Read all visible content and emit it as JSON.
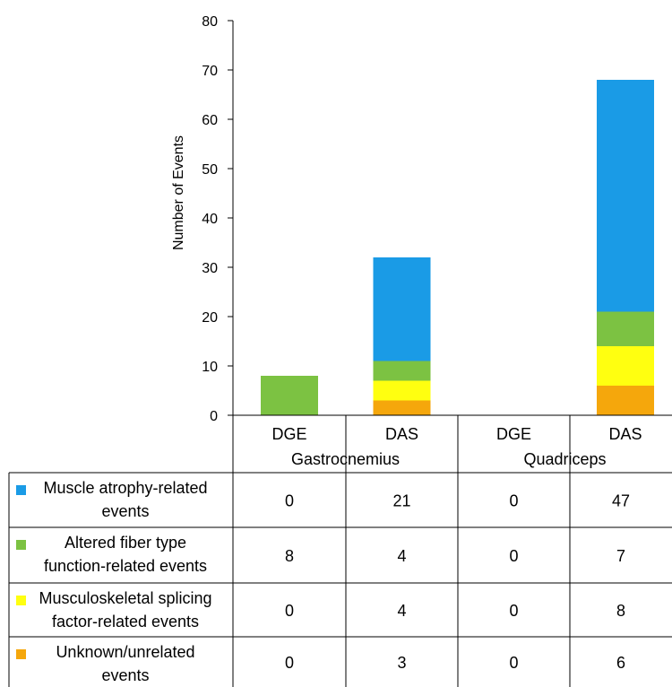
{
  "chart_data": {
    "type": "bar",
    "stacked": true,
    "ylabel": "Number of Events",
    "ylim": [
      0,
      80
    ],
    "yticks": [
      0,
      10,
      20,
      30,
      40,
      50,
      60,
      70,
      80
    ],
    "groups": [
      "Gastrocnemius",
      "Quadriceps"
    ],
    "categories": [
      "DGE",
      "DAS",
      "DGE",
      "DAS"
    ],
    "series": [
      {
        "name_lines": [
          "Unknown/unrelated",
          "events"
        ],
        "color": "#F5A70C",
        "values": [
          0,
          3,
          0,
          6
        ]
      },
      {
        "name_lines": [
          "Musculoskeletal splicing",
          "factor-related events"
        ],
        "color": "#FFFF10",
        "values": [
          0,
          4,
          0,
          8
        ]
      },
      {
        "name_lines": [
          "Altered fiber type",
          "function-related events"
        ],
        "color": "#7CC242",
        "values": [
          8,
          4,
          0,
          7
        ]
      },
      {
        "name_lines": [
          "Muscle atrophy-related",
          "events"
        ],
        "color": "#1A9BE6",
        "values": [
          0,
          21,
          0,
          47
        ]
      }
    ],
    "table_order": [
      3,
      2,
      1,
      0
    ],
    "grid": false,
    "legend": "data-table"
  }
}
